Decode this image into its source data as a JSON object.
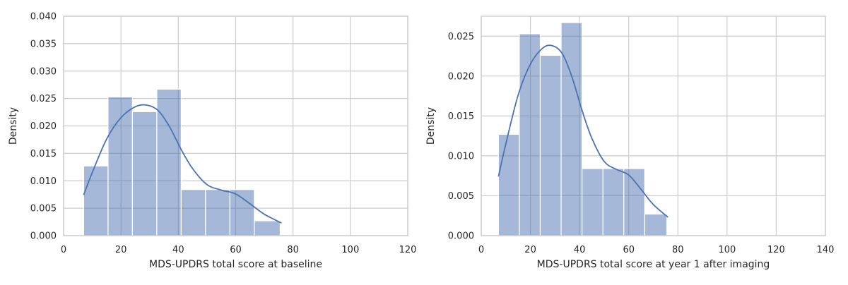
{
  "chart_data": [
    {
      "type": "bar",
      "subtype": "histogram-with-kde",
      "xlabel": "MDS-UPDRS total score at baseline",
      "ylabel": "Density",
      "xlim": [
        0,
        120
      ],
      "ylim": [
        0,
        0.04
      ],
      "xticks": [
        0,
        20,
        40,
        60,
        80,
        100,
        120
      ],
      "yticks": [
        0.0,
        0.005,
        0.01,
        0.015,
        0.02,
        0.025,
        0.03,
        0.035,
        0.04
      ],
      "xtick_labels": [
        "0",
        "20",
        "40",
        "60",
        "80",
        "100",
        "120"
      ],
      "ytick_labels": [
        "0.000",
        "0.005",
        "0.010",
        "0.015",
        "0.020",
        "0.025",
        "0.030",
        "0.035",
        "0.040"
      ],
      "grid": true,
      "color": "#4c72b0",
      "bins": [
        {
          "x0": 7,
          "x1": 15.5,
          "density": 0.0127
        },
        {
          "x0": 15.5,
          "x1": 24,
          "density": 0.0253
        },
        {
          "x0": 24,
          "x1": 32.5,
          "density": 0.0226
        },
        {
          "x0": 32.5,
          "x1": 41,
          "density": 0.0267
        },
        {
          "x0": 41,
          "x1": 49.5,
          "density": 0.0084
        },
        {
          "x0": 49.5,
          "x1": 58,
          "density": 0.0084
        },
        {
          "x0": 58,
          "x1": 66.5,
          "density": 0.0084
        },
        {
          "x0": 66.5,
          "x1": 75.5,
          "density": 0.0027
        }
      ],
      "kde": {
        "x": [
          7,
          10,
          15,
          20,
          25,
          29,
          33,
          37,
          41,
          45,
          50,
          55,
          60,
          65,
          70,
          76
        ],
        "y": [
          0.0074,
          0.0115,
          0.0176,
          0.0215,
          0.0235,
          0.0238,
          0.0228,
          0.0198,
          0.0157,
          0.0122,
          0.0093,
          0.0083,
          0.0076,
          0.0058,
          0.0039,
          0.0023
        ]
      }
    },
    {
      "type": "bar",
      "subtype": "histogram-with-kde",
      "xlabel": "MDS-UPDRS total score at year 1 after imaging",
      "ylabel": "Density",
      "xlim": [
        0,
        140
      ],
      "ylim": [
        0,
        0.0275
      ],
      "xticks": [
        0,
        20,
        40,
        60,
        80,
        100,
        120,
        140
      ],
      "yticks": [
        0.0,
        0.005,
        0.01,
        0.015,
        0.02,
        0.025
      ],
      "xtick_labels": [
        "0",
        "20",
        "40",
        "60",
        "80",
        "100",
        "120",
        "140"
      ],
      "ytick_labels": [
        "0.000",
        "0.005",
        "0.010",
        "0.015",
        "0.020",
        "0.025"
      ],
      "grid": true,
      "color": "#4c72b0",
      "bins": [
        {
          "x0": 7,
          "x1": 15.5,
          "density": 0.0127
        },
        {
          "x0": 15.5,
          "x1": 24,
          "density": 0.0253
        },
        {
          "x0": 24,
          "x1": 32.5,
          "density": 0.0226
        },
        {
          "x0": 32.5,
          "x1": 41,
          "density": 0.0267
        },
        {
          "x0": 41,
          "x1": 49.5,
          "density": 0.0084
        },
        {
          "x0": 49.5,
          "x1": 58,
          "density": 0.0084
        },
        {
          "x0": 58,
          "x1": 66.5,
          "density": 0.0084
        },
        {
          "x0": 66.5,
          "x1": 75.5,
          "density": 0.0027
        }
      ],
      "kde": {
        "x": [
          7,
          10,
          15,
          20,
          25,
          29,
          33,
          37,
          41,
          45,
          50,
          55,
          60,
          65,
          70,
          76
        ],
        "y": [
          0.0074,
          0.0115,
          0.0176,
          0.0215,
          0.0235,
          0.0238,
          0.0228,
          0.0198,
          0.0157,
          0.0122,
          0.0093,
          0.0083,
          0.0076,
          0.0058,
          0.0039,
          0.0023
        ]
      }
    }
  ]
}
